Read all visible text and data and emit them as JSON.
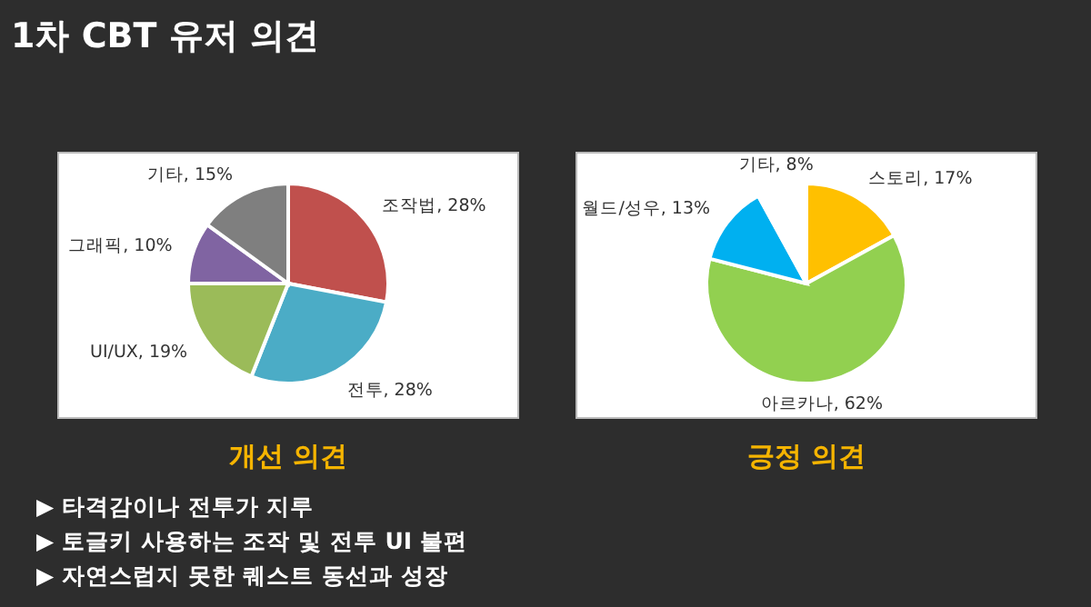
{
  "chart_data": [
    {
      "type": "pie",
      "title": "개선 의견",
      "categories": [
        "조작법",
        "전투",
        "UI/UX",
        "그래픽",
        "기타"
      ],
      "values": [
        28,
        28,
        19,
        10,
        15
      ],
      "colors": [
        "#c0504d",
        "#4bacc6",
        "#9bbb59",
        "#8064a2",
        "#7f7f7f"
      ],
      "value_labels": [
        ", 28%",
        ", 28%",
        ", 19%",
        ", 10%",
        ", 15%"
      ]
    },
    {
      "type": "pie",
      "title": "긍정 의견",
      "categories": [
        "스토리",
        "아르카나",
        "월드/성우",
        "기타"
      ],
      "values": [
        17,
        62,
        13,
        8
      ],
      "colors": [
        "#ffc000",
        "#92d050",
        "#00b0f0",
        "#ffffff"
      ],
      "value_labels": [
        ", 17%",
        ", 62%",
        ", 13%",
        ", 8%"
      ]
    },
    {
      "type": "other",
      "title": "1차 CBT 유저 의견",
      "annotations": [
        "▶ 타격감이나 전투가 지루",
        "▶ 토글키 사용하는 조작 및 전투 UI 불편",
        "▶ 자연스럽지 못한 퀘스트 동선과 성장"
      ]
    }
  ]
}
